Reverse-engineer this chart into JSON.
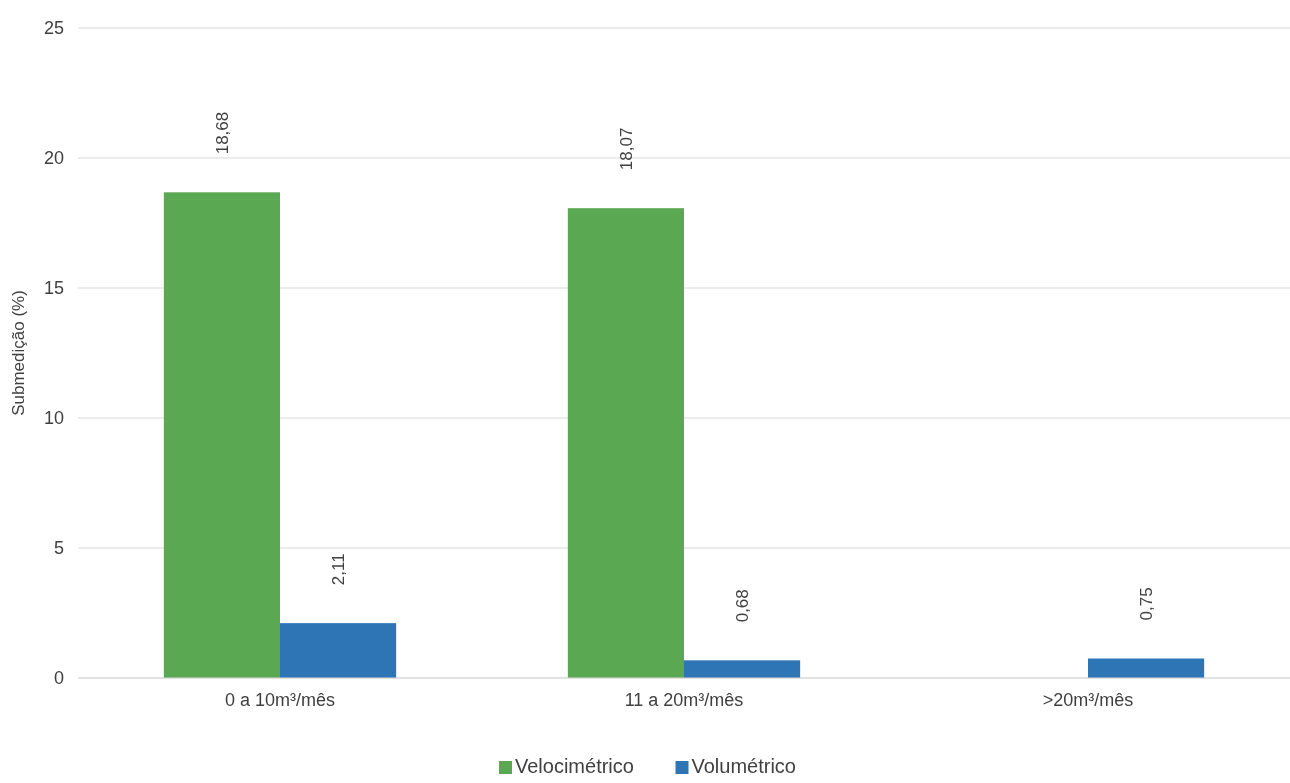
{
  "chart_data": {
    "type": "bar",
    "ylabel": "Submedição (%)",
    "categories": [
      "0 a 10m³/mês",
      "11 a 20m³/mês",
      ">20m³/mês"
    ],
    "series": [
      {
        "name": "Velocimétrico",
        "color": "#5ba852",
        "values": [
          18.68,
          18.07,
          null
        ],
        "value_labels": [
          "18,68",
          "18,07",
          null
        ]
      },
      {
        "name": "Volumétrico",
        "color": "#2e75b6",
        "values": [
          2.11,
          0.68,
          0.75
        ],
        "value_labels": [
          "2,11",
          "0,68",
          "0,75"
        ]
      }
    ],
    "ylim": [
      0,
      25
    ],
    "yticks": [
      0,
      5,
      10,
      15,
      20,
      25
    ],
    "grid": "y",
    "legend": "bottom"
  }
}
